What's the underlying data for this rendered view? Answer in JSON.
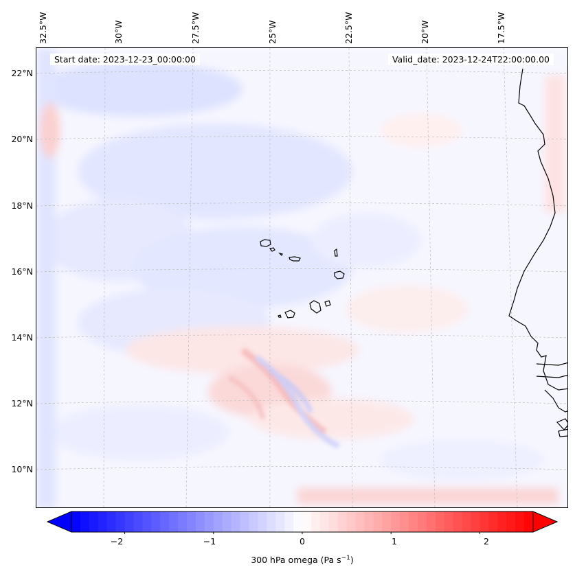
{
  "map": {
    "start_date": "Start date: 2023-12-23_00:00:00",
    "valid_date": "Valid_date: 2023-12-24T22:00:00.00",
    "longitude_labels": [
      "32.5°W",
      "30°W",
      "27.5°W",
      "25°W",
      "22.5°W",
      "20°W",
      "17.5°W"
    ],
    "latitude_labels": [
      "22°N",
      "20°N",
      "18°N",
      "16°N",
      "14°N",
      "12°N",
      "10°N"
    ],
    "features": [
      "Cape Verde islands",
      "West African coastline (Senegal, Gambia, Guinea-Bissau)"
    ]
  },
  "colorbar": {
    "ticks": [
      "−2",
      "−1",
      "0",
      "1",
      "2"
    ],
    "tick_values": [
      -2,
      -1,
      0,
      1,
      2
    ],
    "range": [
      -2.6,
      2.6
    ],
    "label_main": "300 hPa omega (Pa s",
    "label_sup": "−1",
    "label_end": ")",
    "colors": {
      "negative": "#0000ff",
      "zero": "#ffffff",
      "positive": "#ff0000"
    }
  }
}
